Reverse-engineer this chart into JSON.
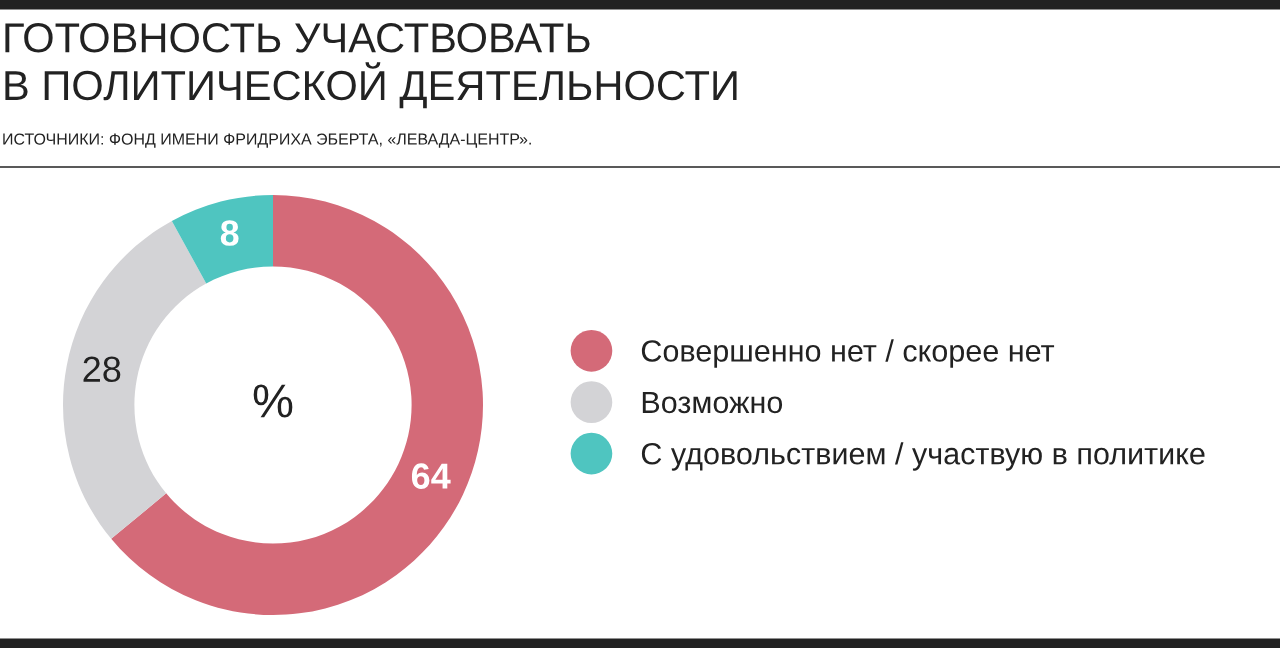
{
  "chart_data": {
    "type": "donut",
    "title": "ГОТОВНОСТЬ УЧАСТВОВАТЬ\nВ ПОЛИТИЧЕСКОЙ ДЕЯТЕЛЬНОСТИ",
    "subtitle": "ИСТОЧНИКИ: ФОНД ИМЕНИ ФРИДРИХА ЭБЕРТА, «ЛЕВАДА-ЦЕНТР».",
    "categories": [
      "Совершенно нет / скорее нет",
      "Возможно",
      "С удовольствием / участвую в политике"
    ],
    "values": [
      64,
      28,
      8
    ],
    "colors": [
      "#d46a78",
      "#d3d3d6",
      "#4fc5c0"
    ],
    "data_labels": true,
    "annotations": [
      "%"
    ],
    "legend": "right"
  }
}
